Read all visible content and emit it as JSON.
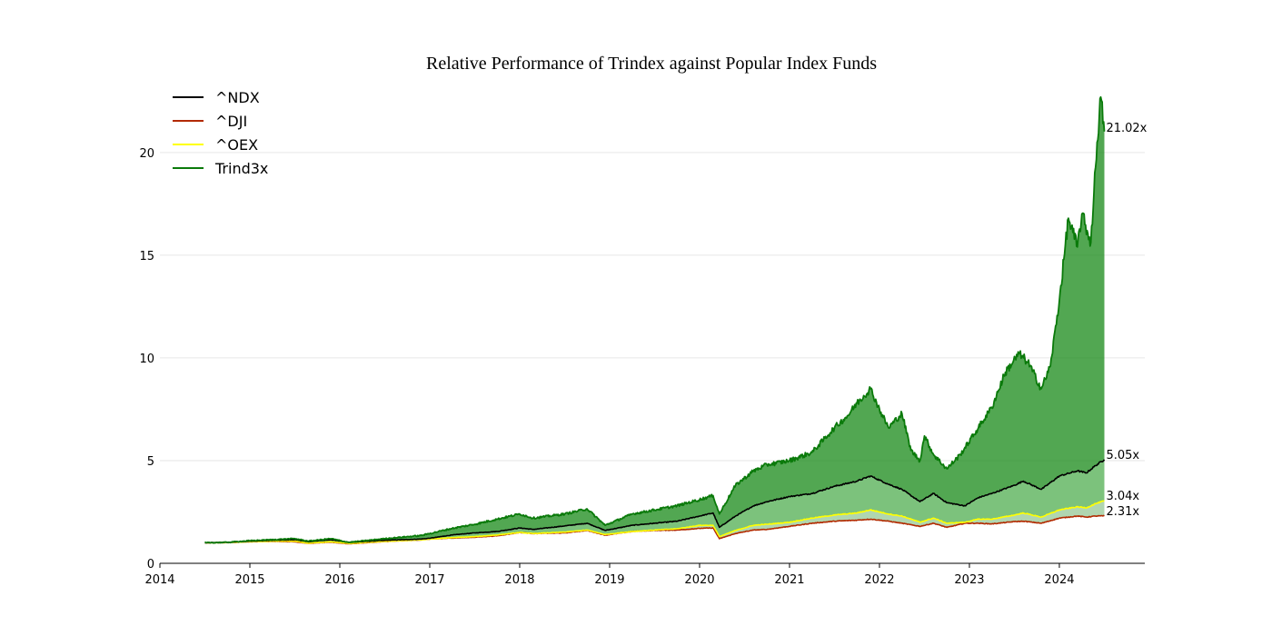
{
  "chart_data": {
    "type": "area",
    "title": "Relative Performance of Trindex against Popular Index Funds",
    "xlabel": "",
    "ylabel": "",
    "xlim": [
      2014,
      2024.95
    ],
    "ylim": [
      0,
      23
    ],
    "x_ticks": [
      "2014",
      "2015",
      "2016",
      "2017",
      "2018",
      "2019",
      "2020",
      "2021",
      "2022",
      "2023",
      "2024"
    ],
    "y_ticks": [
      "0",
      "5",
      "10",
      "15",
      "20"
    ],
    "grid": "horizontal",
    "legend_position": "top-left",
    "series": [
      {
        "name": "^NDX",
        "color": "#000000",
        "end_label": "5.05x",
        "points": [
          [
            2014.5,
            1.0
          ],
          [
            2014.75,
            1.02
          ],
          [
            2015.0,
            1.08
          ],
          [
            2015.25,
            1.12
          ],
          [
            2015.5,
            1.15
          ],
          [
            2015.65,
            1.05
          ],
          [
            2015.9,
            1.15
          ],
          [
            2016.1,
            1.02
          ],
          [
            2016.5,
            1.12
          ],
          [
            2016.9,
            1.18
          ],
          [
            2017.0,
            1.22
          ],
          [
            2017.25,
            1.38
          ],
          [
            2017.5,
            1.48
          ],
          [
            2017.75,
            1.55
          ],
          [
            2018.0,
            1.72
          ],
          [
            2018.15,
            1.65
          ],
          [
            2018.5,
            1.82
          ],
          [
            2018.75,
            1.95
          ],
          [
            2018.95,
            1.6
          ],
          [
            2019.25,
            1.85
          ],
          [
            2019.5,
            1.95
          ],
          [
            2019.75,
            2.05
          ],
          [
            2020.0,
            2.3
          ],
          [
            2020.15,
            2.45
          ],
          [
            2020.22,
            1.75
          ],
          [
            2020.4,
            2.3
          ],
          [
            2020.6,
            2.8
          ],
          [
            2020.75,
            3.0
          ],
          [
            2021.0,
            3.25
          ],
          [
            2021.25,
            3.4
          ],
          [
            2021.5,
            3.75
          ],
          [
            2021.75,
            4.0
          ],
          [
            2021.9,
            4.25
          ],
          [
            2022.1,
            3.85
          ],
          [
            2022.25,
            3.6
          ],
          [
            2022.45,
            3.0
          ],
          [
            2022.6,
            3.4
          ],
          [
            2022.75,
            2.95
          ],
          [
            2022.95,
            2.8
          ],
          [
            2023.1,
            3.2
          ],
          [
            2023.25,
            3.4
          ],
          [
            2023.5,
            3.8
          ],
          [
            2023.6,
            4.0
          ],
          [
            2023.8,
            3.6
          ],
          [
            2024.0,
            4.25
          ],
          [
            2024.2,
            4.5
          ],
          [
            2024.3,
            4.4
          ],
          [
            2024.4,
            4.75
          ],
          [
            2024.5,
            5.05
          ]
        ]
      },
      {
        "name": "^DJI",
        "color": "#b22a00",
        "end_label": "2.31x",
        "points": [
          [
            2014.5,
            1.0
          ],
          [
            2014.75,
            1.01
          ],
          [
            2015.0,
            1.05
          ],
          [
            2015.25,
            1.07
          ],
          [
            2015.5,
            1.05
          ],
          [
            2015.65,
            0.97
          ],
          [
            2015.9,
            1.03
          ],
          [
            2016.1,
            0.95
          ],
          [
            2016.5,
            1.06
          ],
          [
            2016.9,
            1.14
          ],
          [
            2017.0,
            1.18
          ],
          [
            2017.25,
            1.23
          ],
          [
            2017.5,
            1.27
          ],
          [
            2017.75,
            1.34
          ],
          [
            2018.0,
            1.5
          ],
          [
            2018.15,
            1.45
          ],
          [
            2018.5,
            1.48
          ],
          [
            2018.75,
            1.6
          ],
          [
            2018.95,
            1.37
          ],
          [
            2019.25,
            1.55
          ],
          [
            2019.5,
            1.6
          ],
          [
            2019.75,
            1.62
          ],
          [
            2020.0,
            1.7
          ],
          [
            2020.15,
            1.72
          ],
          [
            2020.22,
            1.2
          ],
          [
            2020.4,
            1.45
          ],
          [
            2020.6,
            1.62
          ],
          [
            2020.75,
            1.65
          ],
          [
            2021.0,
            1.8
          ],
          [
            2021.25,
            1.95
          ],
          [
            2021.5,
            2.05
          ],
          [
            2021.75,
            2.1
          ],
          [
            2021.9,
            2.15
          ],
          [
            2022.1,
            2.05
          ],
          [
            2022.25,
            1.95
          ],
          [
            2022.45,
            1.8
          ],
          [
            2022.6,
            1.95
          ],
          [
            2022.75,
            1.75
          ],
          [
            2022.95,
            1.95
          ],
          [
            2023.1,
            1.95
          ],
          [
            2023.25,
            1.92
          ],
          [
            2023.5,
            2.03
          ],
          [
            2023.6,
            2.05
          ],
          [
            2023.8,
            1.95
          ],
          [
            2024.0,
            2.2
          ],
          [
            2024.2,
            2.3
          ],
          [
            2024.3,
            2.25
          ],
          [
            2024.4,
            2.3
          ],
          [
            2024.5,
            2.31
          ]
        ]
      },
      {
        "name": "^OEX",
        "color": "#ffff00",
        "end_label": "3.04x",
        "points": [
          [
            2014.5,
            1.0
          ],
          [
            2014.75,
            1.01
          ],
          [
            2015.0,
            1.05
          ],
          [
            2015.25,
            1.08
          ],
          [
            2015.5,
            1.08
          ],
          [
            2015.65,
            0.98
          ],
          [
            2015.9,
            1.05
          ],
          [
            2016.1,
            0.97
          ],
          [
            2016.5,
            1.07
          ],
          [
            2016.9,
            1.14
          ],
          [
            2017.0,
            1.18
          ],
          [
            2017.25,
            1.25
          ],
          [
            2017.5,
            1.3
          ],
          [
            2017.75,
            1.38
          ],
          [
            2018.0,
            1.5
          ],
          [
            2018.15,
            1.45
          ],
          [
            2018.5,
            1.52
          ],
          [
            2018.75,
            1.62
          ],
          [
            2018.95,
            1.4
          ],
          [
            2019.25,
            1.55
          ],
          [
            2019.5,
            1.62
          ],
          [
            2019.75,
            1.68
          ],
          [
            2020.0,
            1.85
          ],
          [
            2020.15,
            1.85
          ],
          [
            2020.22,
            1.3
          ],
          [
            2020.4,
            1.6
          ],
          [
            2020.6,
            1.85
          ],
          [
            2020.75,
            1.9
          ],
          [
            2021.0,
            2.0
          ],
          [
            2021.25,
            2.2
          ],
          [
            2021.5,
            2.35
          ],
          [
            2021.75,
            2.45
          ],
          [
            2021.9,
            2.6
          ],
          [
            2022.1,
            2.4
          ],
          [
            2022.25,
            2.3
          ],
          [
            2022.45,
            2.0
          ],
          [
            2022.6,
            2.2
          ],
          [
            2022.75,
            1.95
          ],
          [
            2022.95,
            2.0
          ],
          [
            2023.1,
            2.15
          ],
          [
            2023.25,
            2.15
          ],
          [
            2023.5,
            2.35
          ],
          [
            2023.6,
            2.45
          ],
          [
            2023.8,
            2.25
          ],
          [
            2024.0,
            2.6
          ],
          [
            2024.2,
            2.75
          ],
          [
            2024.3,
            2.7
          ],
          [
            2024.4,
            2.9
          ],
          [
            2024.5,
            3.04
          ]
        ]
      },
      {
        "name": "Trind3x",
        "color": "#0a7a0a",
        "end_label": "21.02x",
        "points": [
          [
            2014.5,
            1.0
          ],
          [
            2014.75,
            1.02
          ],
          [
            2015.0,
            1.1
          ],
          [
            2015.25,
            1.15
          ],
          [
            2015.5,
            1.2
          ],
          [
            2015.65,
            1.08
          ],
          [
            2015.9,
            1.2
          ],
          [
            2016.1,
            1.02
          ],
          [
            2016.5,
            1.2
          ],
          [
            2016.9,
            1.35
          ],
          [
            2017.0,
            1.45
          ],
          [
            2017.25,
            1.7
          ],
          [
            2017.5,
            1.9
          ],
          [
            2017.75,
            2.15
          ],
          [
            2018.0,
            2.4
          ],
          [
            2018.15,
            2.2
          ],
          [
            2018.5,
            2.4
          ],
          [
            2018.75,
            2.65
          ],
          [
            2018.95,
            1.85
          ],
          [
            2019.25,
            2.4
          ],
          [
            2019.5,
            2.6
          ],
          [
            2019.75,
            2.8
          ],
          [
            2020.0,
            3.1
          ],
          [
            2020.15,
            3.3
          ],
          [
            2020.22,
            2.4
          ],
          [
            2020.4,
            3.8
          ],
          [
            2020.6,
            4.5
          ],
          [
            2020.75,
            4.8
          ],
          [
            2021.0,
            5.0
          ],
          [
            2021.25,
            5.4
          ],
          [
            2021.5,
            6.6
          ],
          [
            2021.65,
            7.2
          ],
          [
            2021.75,
            7.8
          ],
          [
            2021.9,
            8.5
          ],
          [
            2022.0,
            7.5
          ],
          [
            2022.1,
            6.6
          ],
          [
            2022.25,
            7.3
          ],
          [
            2022.35,
            5.5
          ],
          [
            2022.45,
            5.0
          ],
          [
            2022.5,
            6.2
          ],
          [
            2022.6,
            5.3
          ],
          [
            2022.75,
            4.6
          ],
          [
            2022.9,
            5.3
          ],
          [
            2023.1,
            6.6
          ],
          [
            2023.25,
            7.6
          ],
          [
            2023.4,
            9.3
          ],
          [
            2023.55,
            10.2
          ],
          [
            2023.65,
            9.8
          ],
          [
            2023.8,
            8.5
          ],
          [
            2023.9,
            9.6
          ],
          [
            2024.0,
            12.8
          ],
          [
            2024.1,
            16.8
          ],
          [
            2024.2,
            15.4
          ],
          [
            2024.25,
            17.0
          ],
          [
            2024.35,
            15.6
          ],
          [
            2024.42,
            20.5
          ],
          [
            2024.46,
            22.7
          ],
          [
            2024.5,
            21.02
          ]
        ]
      }
    ]
  }
}
